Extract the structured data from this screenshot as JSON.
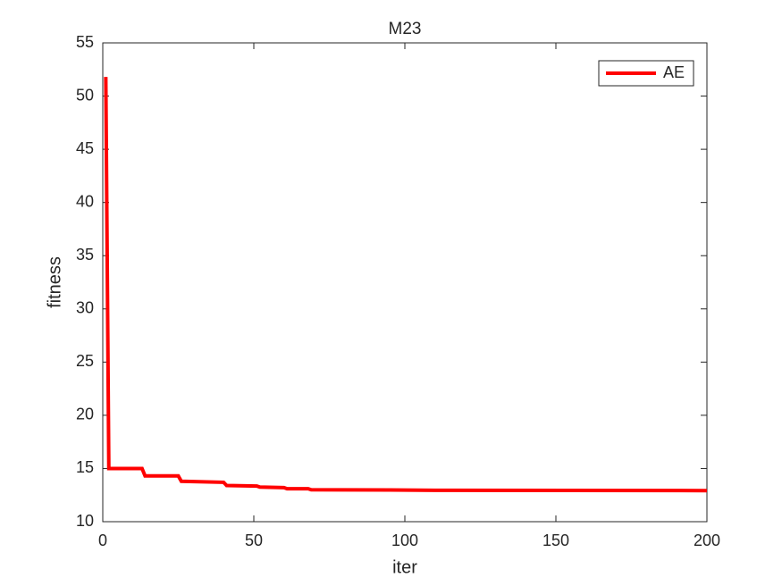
{
  "chart_data": {
    "type": "line",
    "title": "M23",
    "x_label": "iter",
    "y_label": "fitness",
    "x": [
      1,
      2,
      13,
      14,
      25,
      26,
      40,
      41,
      51,
      52,
      60,
      61,
      68,
      69,
      95,
      110,
      200
    ],
    "series": [
      {
        "name": "AE",
        "color": "#ff0000",
        "values": [
          51.8,
          15.0,
          15.0,
          14.3,
          14.3,
          13.8,
          13.7,
          13.4,
          13.35,
          13.25,
          13.2,
          13.1,
          13.1,
          13.0,
          12.98,
          12.95,
          12.92
        ]
      }
    ],
    "xlim": [
      0,
      200
    ],
    "xticks": [
      0,
      50,
      100,
      150,
      200
    ],
    "ylim": [
      10,
      55
    ],
    "yticks": [
      10,
      15,
      20,
      25,
      30,
      35,
      40,
      45,
      50,
      55
    ],
    "grid": false,
    "legend_position": "top-right"
  }
}
